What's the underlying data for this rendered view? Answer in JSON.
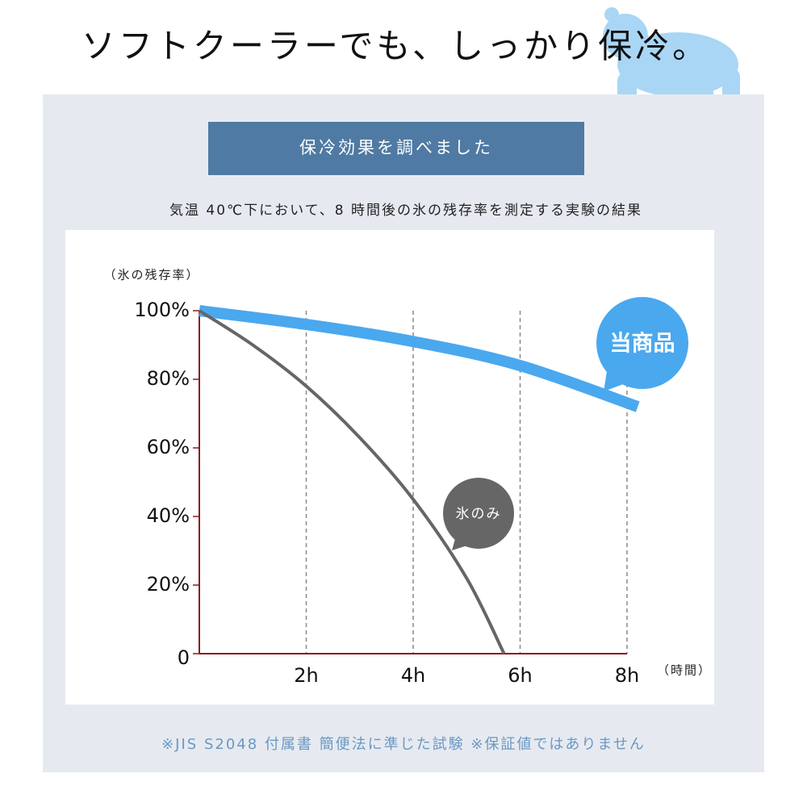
{
  "chart_data": {
    "type": "line",
    "title": "ソフトクーラーでも、しっかり保冷。",
    "banner": "保冷効果を調べました",
    "subtitle": "気温 40℃下において、8 時間後の氷の残存率を測定する実験の結果",
    "y_label": "（氷の残存率）",
    "x_label": "（時間）",
    "footnote": "※JIS S2048 付属書 簡便法に準じた試験 ※保証値ではありません",
    "xlim": [
      0,
      8
    ],
    "ylim": [
      0,
      100
    ],
    "xticks": [
      {
        "value": 2,
        "label": "2h"
      },
      {
        "value": 4,
        "label": "4h"
      },
      {
        "value": 6,
        "label": "6h"
      },
      {
        "value": 8,
        "label": "8h"
      }
    ],
    "yticks": [
      0,
      {
        "value": 20,
        "label": "20%"
      },
      {
        "value": 40,
        "label": "40%"
      },
      {
        "value": 60,
        "label": "60%"
      },
      {
        "value": 80,
        "label": "80%"
      },
      {
        "value": 100,
        "label": "100%"
      }
    ],
    "grid": true,
    "series": [
      {
        "name": "当商品",
        "color": "#4aa8ef",
        "x": [
          0,
          2,
          4,
          6,
          8.2
        ],
        "values": [
          100,
          96,
          91,
          84,
          72
        ]
      },
      {
        "name": "氷のみ",
        "color": "#666666",
        "x": [
          0,
          1,
          2,
          3,
          4,
          5,
          5.7
        ],
        "values": [
          100,
          90,
          78,
          63,
          45,
          22,
          0
        ]
      }
    ]
  }
}
